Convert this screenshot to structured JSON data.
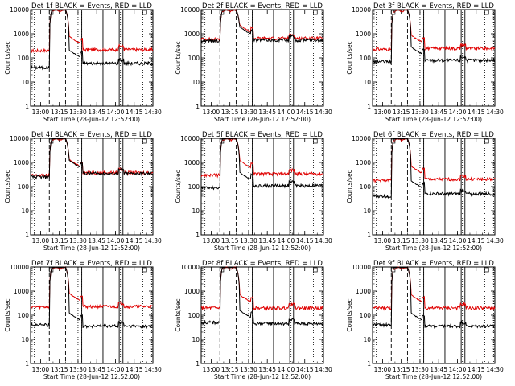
{
  "page": {
    "description_color_black": "#000000",
    "description_color_red": "#e00000"
  },
  "chart_data": {
    "type": "line",
    "scale": "log",
    "ylabel": "Counts/sec",
    "xlabel": "Start Time (28-Jun-12 12:52:00)",
    "x_ticks": [
      "13:00",
      "13:15",
      "13:30",
      "13:45",
      "14:00",
      "14:15",
      "14:30"
    ],
    "y_ticks": [
      "1",
      "10",
      "100",
      "1000",
      "10000"
    ],
    "ylim": [
      1,
      10000
    ],
    "xlim_minutes_after_12_52": [
      0,
      98
    ],
    "series_colors": {
      "events": "#000000",
      "lld": "#e00000"
    },
    "panels": [
      {
        "title": "Det 1f BLACK = Events, RED = LLD",
        "base_black": 40,
        "base_red": 200,
        "post_black": 60,
        "post_red": 220,
        "show_xlabel": true
      },
      {
        "title": "Det 2f BLACK = Events, RED = LLD",
        "base_black": 520,
        "base_red": 600,
        "post_black": 550,
        "post_red": 650,
        "show_xlabel": true
      },
      {
        "title": "Det 3f BLACK = Events, RED = LLD",
        "base_black": 70,
        "base_red": 230,
        "post_black": 80,
        "post_red": 250,
        "show_xlabel": true
      },
      {
        "title": "Det 4f BLACK = Events, RED = LLD",
        "base_black": 250,
        "base_red": 290,
        "post_black": 350,
        "post_red": 380,
        "show_xlabel": true
      },
      {
        "title": "Det 5f BLACK = Events, RED = LLD",
        "base_black": 90,
        "base_red": 300,
        "post_black": 110,
        "post_red": 340,
        "show_xlabel": true
      },
      {
        "title": "Det 6f BLACK = Events, RED = LLD",
        "base_black": 40,
        "base_red": 180,
        "post_black": 50,
        "post_red": 200,
        "show_xlabel": true
      },
      {
        "title": "Det 7f BLACK = Events, RED = LLD",
        "base_black": 40,
        "base_red": 220,
        "post_black": 35,
        "post_red": 230,
        "show_xlabel": true
      },
      {
        "title": "Det 8f BLACK = Events, RED = LLD",
        "base_black": 50,
        "base_red": 200,
        "post_black": 45,
        "post_red": 200,
        "show_xlabel": true
      },
      {
        "title": "Det 9f BLACK = Events, RED = LLD",
        "base_black": 40,
        "base_red": 200,
        "post_black": 35,
        "post_red": 200,
        "show_xlabel": true
      }
    ],
    "vertical_markers": {
      "dotted_minutes": [
        3,
        38,
        41,
        72,
        90,
        97
      ],
      "dashed_minutes": [
        15,
        28
      ],
      "solid_minutes": [
        41,
        58,
        71,
        74
      ]
    }
  }
}
